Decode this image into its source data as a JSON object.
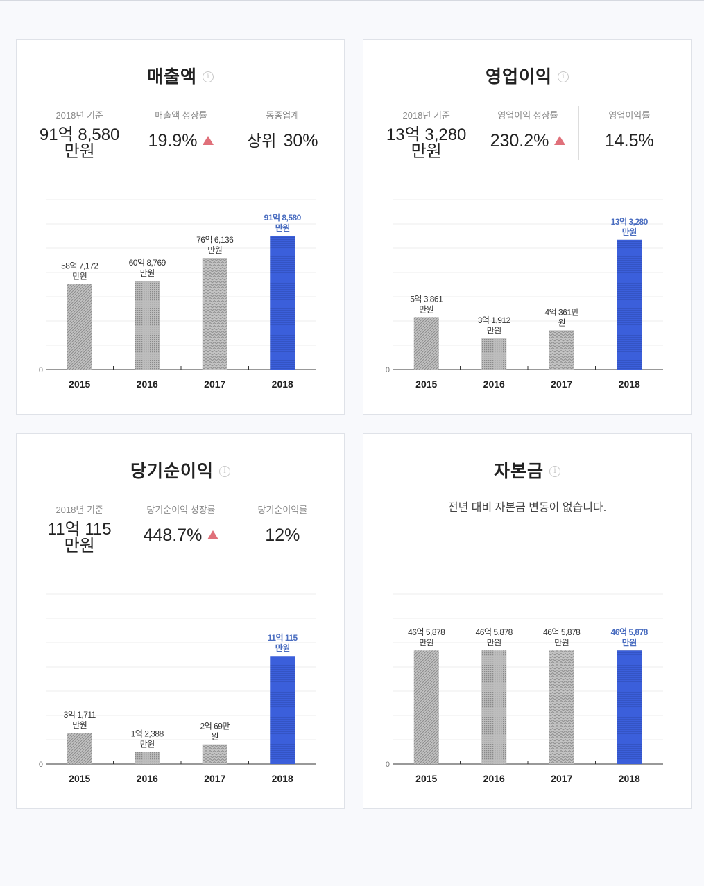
{
  "colors": {
    "hatch": "#a9a9a9",
    "highlight": "#3b5fdb",
    "highlight_text": "#4a6dc0",
    "up_arrow": "#e0707a"
  },
  "panels": [
    {
      "title": "매출액",
      "info_icon": "info-icon",
      "stats": [
        {
          "label": "2018년 기준",
          "value_line1": "91억 8,580",
          "value_line2": "만원"
        },
        {
          "label": "매출액 성장률",
          "value": "19.9%",
          "trend": "up-arrow-icon"
        },
        {
          "label": "동종업계",
          "prefix": "상위",
          "value": "30%"
        }
      ]
    },
    {
      "title": "영업이익",
      "info_icon": "info-icon",
      "stats": [
        {
          "label": "2018년 기준",
          "value_line1": "13억 3,280",
          "value_line2": "만원"
        },
        {
          "label": "영업이익 성장률",
          "value": "230.2%",
          "trend": "up-arrow-icon"
        },
        {
          "label": "영업이익률",
          "value": "14.5%"
        }
      ]
    },
    {
      "title": "당기순이익",
      "info_icon": "info-icon",
      "stats": [
        {
          "label": "2018년 기준",
          "value_line1": "11억 115",
          "value_line2": "만원"
        },
        {
          "label": "당기순이익 성장률",
          "value": "448.7%",
          "trend": "up-arrow-icon"
        },
        {
          "label": "당기순이익률",
          "value": "12%"
        }
      ]
    },
    {
      "title": "자본금",
      "info_icon": "info-icon",
      "notice": "전년 대비 자본금 변동이 없습니다."
    }
  ],
  "chart_data": [
    {
      "type": "bar",
      "title": "매출액",
      "categories": [
        "2015",
        "2016",
        "2017",
        "2018"
      ],
      "values": [
        587172,
        608769,
        766136,
        918580
      ],
      "unit": "만원",
      "data_labels": [
        [
          "58억 7,172",
          "만원"
        ],
        [
          "60억 8,769",
          "만원"
        ],
        [
          "76억 6,136",
          "만원"
        ],
        [
          "91억 8,580",
          "만원"
        ]
      ],
      "ytick_labels": [
        "0"
      ],
      "ylim": [
        0,
        1166000
      ],
      "highlight_index": 3,
      "patterns": [
        "diag",
        "dots",
        "zigzag",
        "hline"
      ],
      "grid": true
    },
    {
      "type": "bar",
      "title": "영업이익",
      "categories": [
        "2015",
        "2016",
        "2017",
        "2018"
      ],
      "values": [
        53861,
        31912,
        40361,
        133280
      ],
      "unit": "만원",
      "data_labels": [
        [
          "5억 3,861",
          "만원"
        ],
        [
          "3억 1,912",
          "만원"
        ],
        [
          "4억 361만",
          "원"
        ],
        [
          "13억 3,280",
          "만원"
        ]
      ],
      "ytick_labels": [
        "0"
      ],
      "ylim": [
        0,
        174400
      ],
      "highlight_index": 3,
      "patterns": [
        "diag",
        "dots",
        "zigzag",
        "hline"
      ],
      "grid": true
    },
    {
      "type": "bar",
      "title": "당기순이익",
      "categories": [
        "2015",
        "2016",
        "2017",
        "2018"
      ],
      "values": [
        31711,
        12388,
        20069,
        110115
      ],
      "unit": "만원",
      "data_labels": [
        [
          "3억 1,711",
          "만원"
        ],
        [
          "1억 2,388",
          "만원"
        ],
        [
          "2억 69만",
          "원"
        ],
        [
          "11억 115",
          "만원"
        ]
      ],
      "ytick_labels": [
        "0"
      ],
      "ylim": [
        0,
        173200
      ],
      "highlight_index": 3,
      "patterns": [
        "diag",
        "dots",
        "zigzag",
        "hline"
      ],
      "grid": true
    },
    {
      "type": "bar",
      "title": "자본금",
      "categories": [
        "2015",
        "2016",
        "2017",
        "2018"
      ],
      "values": [
        465878,
        465878,
        465878,
        465878
      ],
      "unit": "만원",
      "data_labels": [
        [
          "46억 5,878",
          "만원"
        ],
        [
          "46억 5,878",
          "만원"
        ],
        [
          "46억 5,878",
          "만원"
        ],
        [
          "46억 5,878",
          "만원"
        ]
      ],
      "ytick_labels": [
        "0"
      ],
      "ylim": [
        0,
        697000
      ],
      "highlight_index": 3,
      "patterns": [
        "diag",
        "dots",
        "zigzag",
        "hline"
      ],
      "grid": true
    }
  ]
}
